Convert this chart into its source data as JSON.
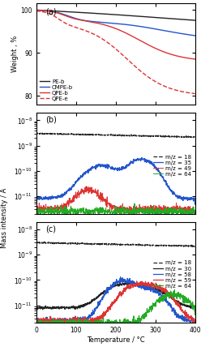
{
  "panel_a": {
    "label": "(a)",
    "ylabel": "Weight , %",
    "ylim": [
      78,
      101.5
    ],
    "yticks": [
      80,
      90,
      100
    ],
    "curves": {
      "PE-b": {
        "color": "#222222",
        "linestyle": "-",
        "linewidth": 1.0
      },
      "CMPE-b": {
        "color": "#2255cc",
        "linestyle": "-",
        "linewidth": 1.0
      },
      "QPE-b": {
        "color": "#dd3333",
        "linestyle": "-",
        "linewidth": 1.0
      },
      "QPE-e": {
        "color": "#dd3333",
        "linestyle": "--",
        "linewidth": 1.0
      }
    }
  },
  "panel_b": {
    "label": "(b)",
    "ylim_log": [
      -11.7,
      -7.7
    ],
    "curves": {
      "m/z = 18": {
        "color": "#222222",
        "linestyle": "--",
        "linewidth": 0.9
      },
      "m/z = 35": {
        "color": "#2255cc",
        "linestyle": "-",
        "linewidth": 0.9
      },
      "m/z = 49": {
        "color": "#dd3333",
        "linestyle": "-",
        "linewidth": 0.7
      },
      "m/z = 64": {
        "color": "#22aa22",
        "linestyle": "-",
        "linewidth": 0.7
      }
    }
  },
  "panel_c": {
    "label": "(c)",
    "ylim_log": [
      -11.7,
      -7.7
    ],
    "curves": {
      "m/z = 18": {
        "color": "#222222",
        "linestyle": "--",
        "linewidth": 0.9
      },
      "m/z = 30": {
        "color": "#222222",
        "linestyle": "-",
        "linewidth": 0.9
      },
      "m/z = 58": {
        "color": "#2255cc",
        "linestyle": "-",
        "linewidth": 0.9
      },
      "m/z = 59": {
        "color": "#dd3333",
        "linestyle": "-",
        "linewidth": 0.9
      },
      "m/z = 64": {
        "color": "#22aa22",
        "linestyle": "-",
        "linewidth": 0.9
      }
    }
  },
  "xlabel": "Temperature / °C",
  "xlim": [
    0,
    400
  ],
  "xticks": [
    0,
    100,
    200,
    300,
    400
  ]
}
